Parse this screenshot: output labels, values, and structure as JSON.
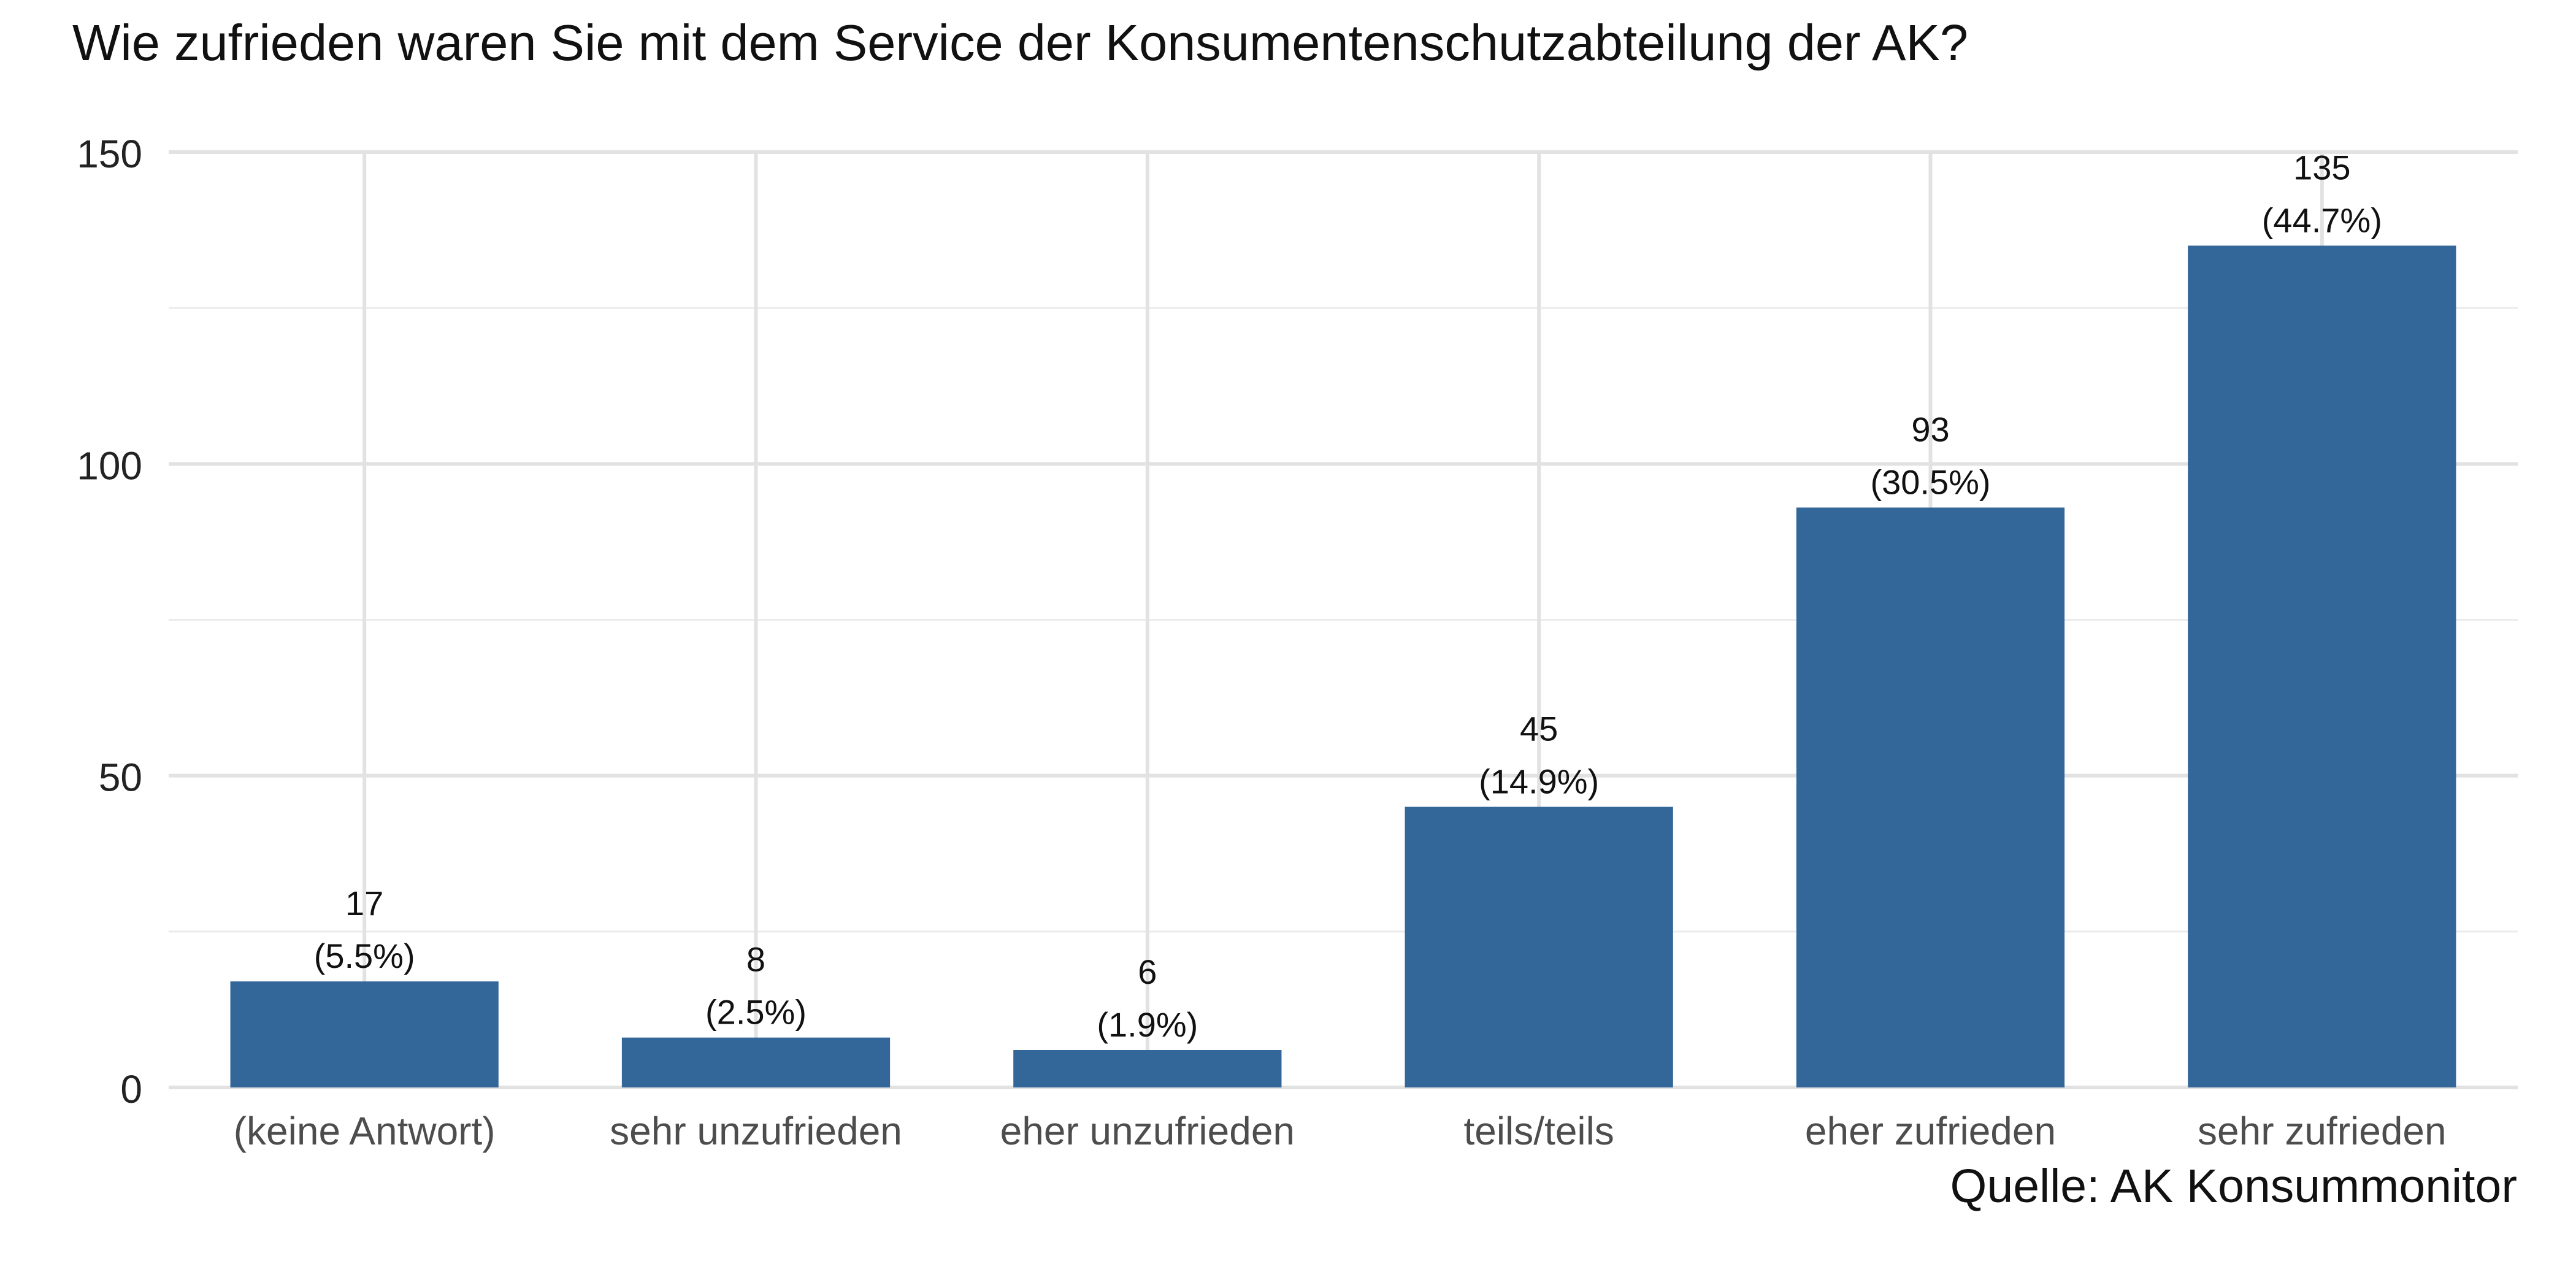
{
  "chart_data": {
    "type": "bar",
    "title": "Wie zufrieden waren Sie mit dem Service der Konsumentenschutzabteilung der AK?",
    "xlabel": "",
    "ylabel": "",
    "categories": [
      "(keine Antwort)",
      "sehr unzufrieden",
      "eher unzufrieden",
      "teils/teils",
      "eher zufrieden",
      "sehr zufrieden"
    ],
    "values": [
      17,
      8,
      6,
      45,
      93,
      135
    ],
    "value_labels": [
      "17",
      "8",
      "6",
      "45",
      "93",
      "135"
    ],
    "percent_labels": [
      "(5.5%)",
      "(2.5%)",
      "(1.9%)",
      "(14.9%)",
      "(30.5%)",
      "(44.7%)"
    ],
    "ylim": [
      0,
      150
    ],
    "yticks": [
      0,
      50,
      100,
      150
    ],
    "ytick_labels": [
      "0",
      "50",
      "100",
      "150"
    ],
    "grid": true,
    "caption": "Quelle: AK Konsummonitor",
    "bar_color": "#336699"
  }
}
